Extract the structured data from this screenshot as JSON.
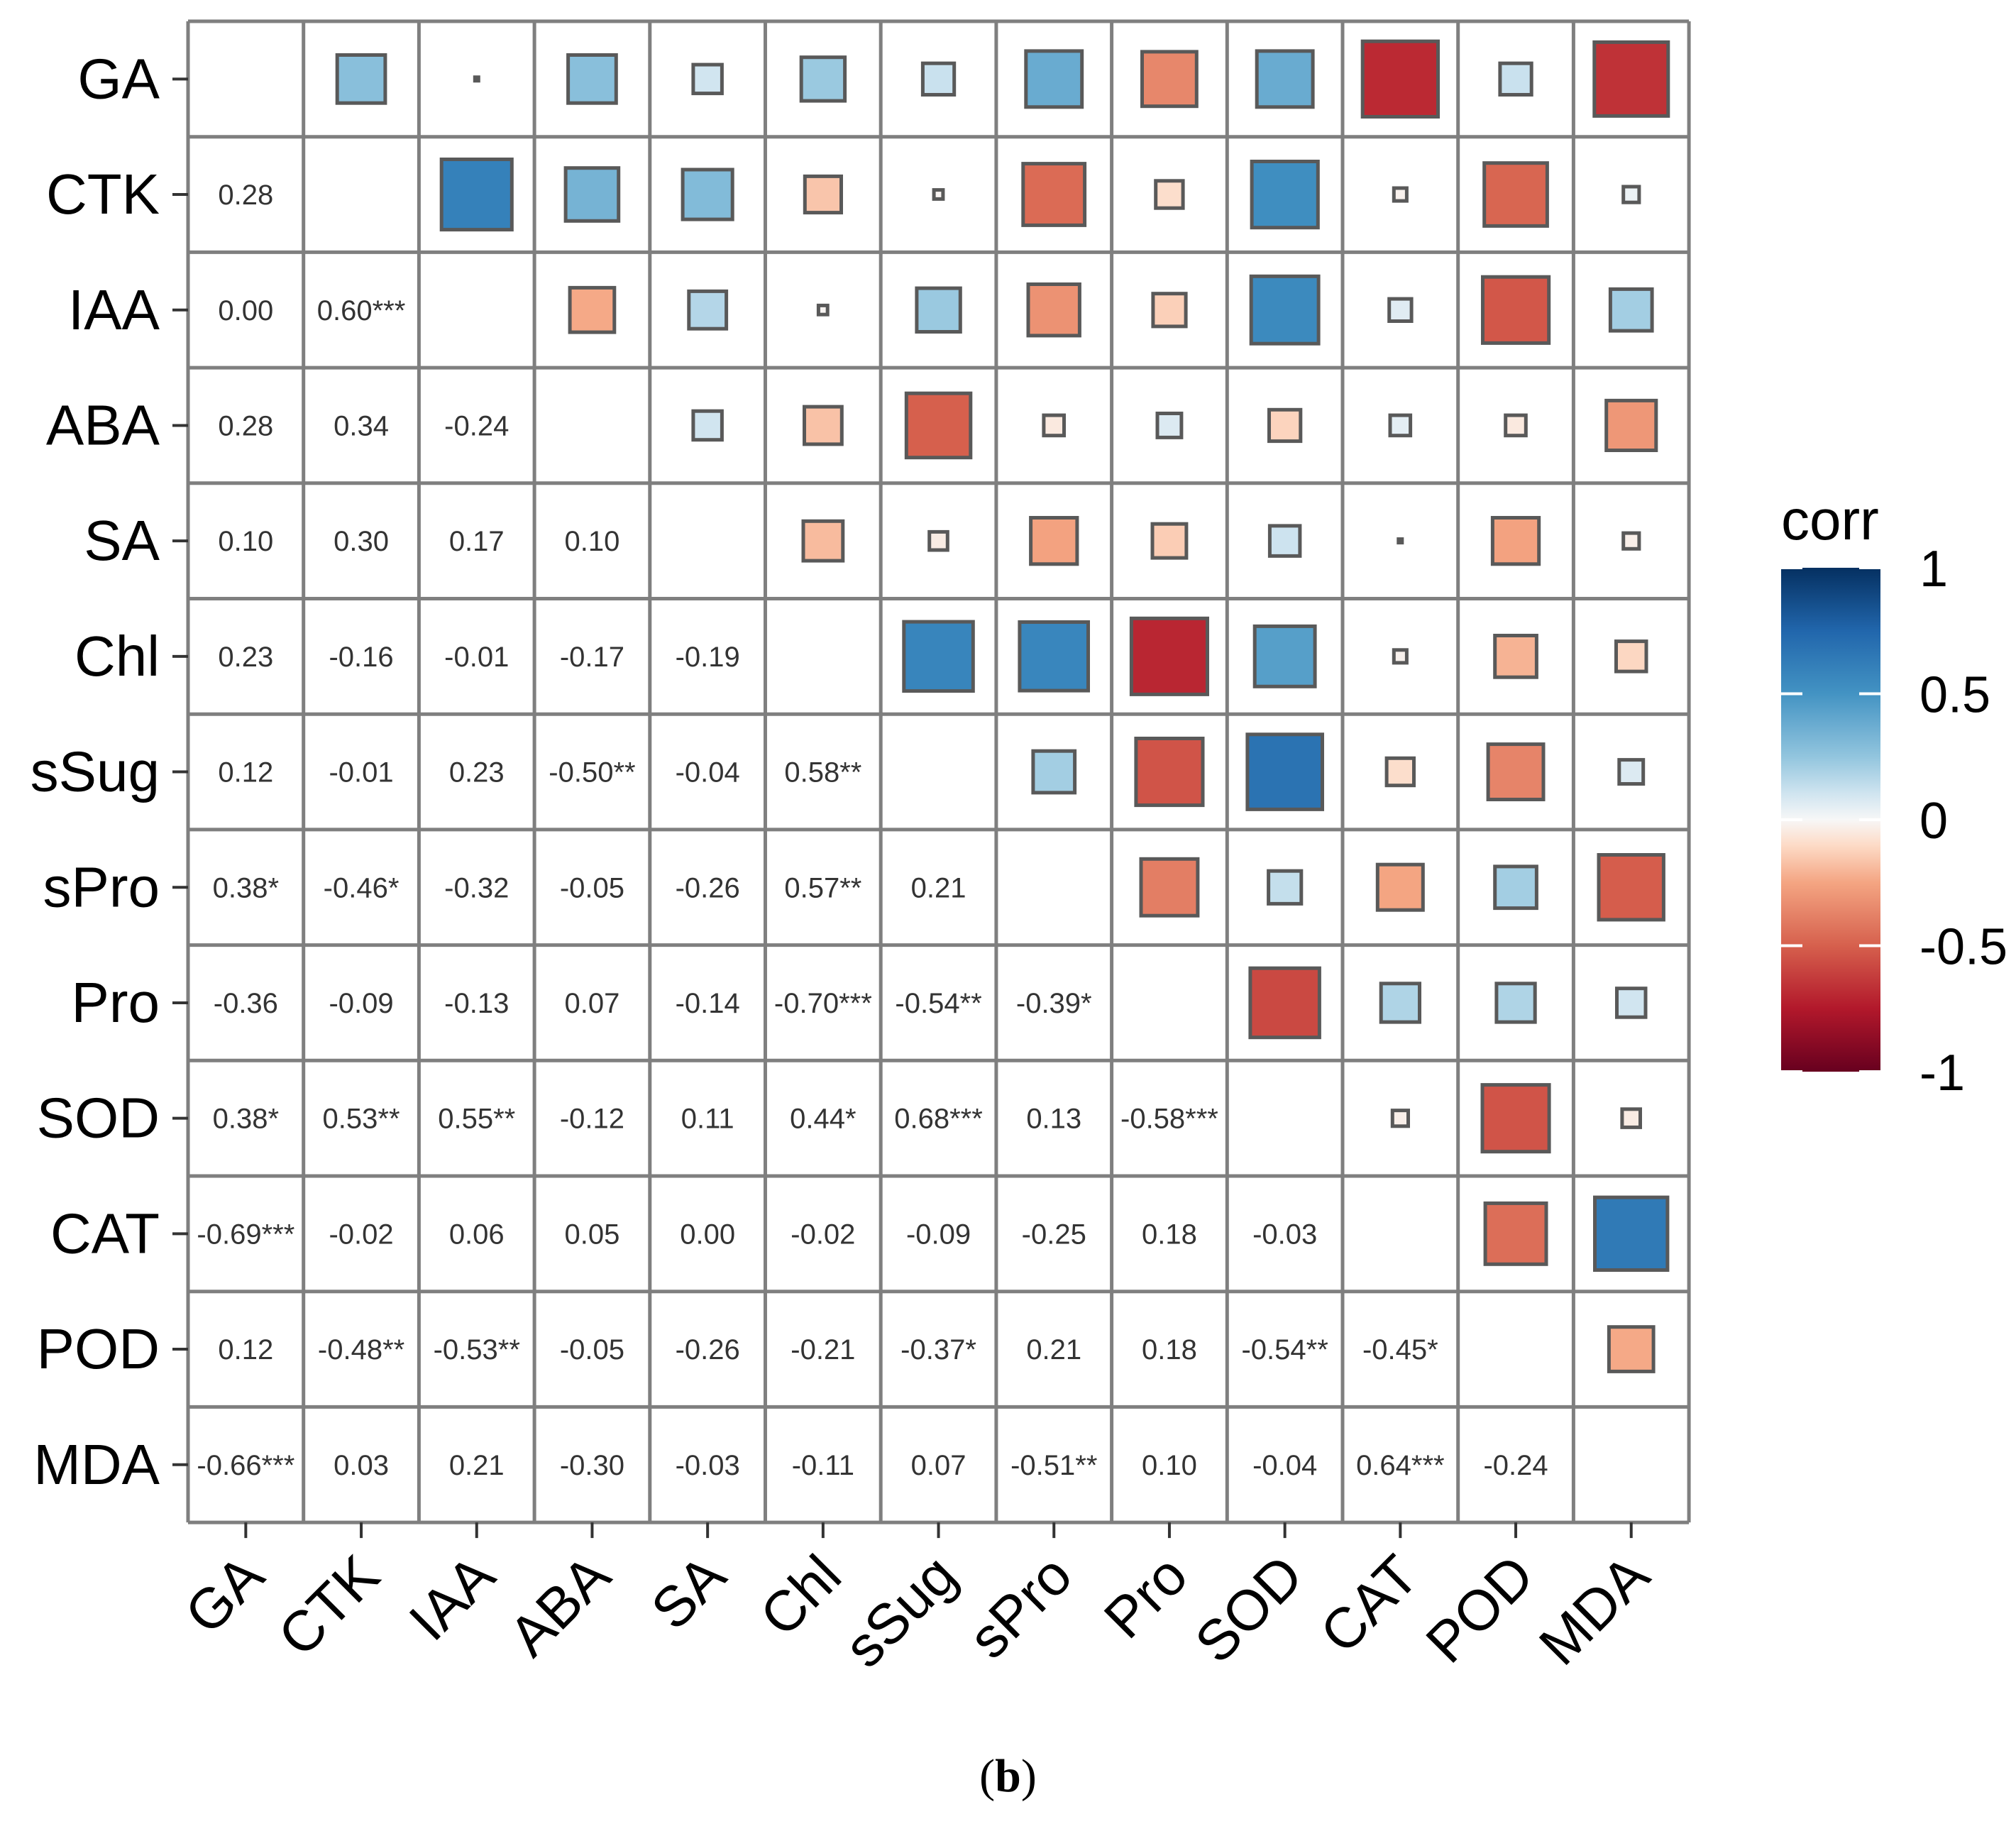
{
  "chart_data": {
    "type": "heatmap",
    "subtype": "correlation-matrix-squares",
    "variables": [
      "GA",
      "CTK",
      "IAA",
      "ABA",
      "SA",
      "Chl",
      "sSug",
      "sPro",
      "Pro",
      "SOD",
      "CAT",
      "POD",
      "MDA"
    ],
    "lower_labels": [
      [],
      [
        "0.28"
      ],
      [
        "0.00",
        "0.60***"
      ],
      [
        "0.28",
        "0.34",
        "-0.24"
      ],
      [
        "0.10",
        "0.30",
        "0.17",
        "0.10"
      ],
      [
        "0.23",
        "-0.16",
        "-0.01",
        "-0.17",
        "-0.19"
      ],
      [
        "0.12",
        "-0.01",
        "0.23",
        "-0.50**",
        "-0.04",
        "0.58**"
      ],
      [
        "0.38*",
        "-0.46*",
        "-0.32",
        "-0.05",
        "-0.26",
        "0.57**",
        "0.21"
      ],
      [
        "-0.36",
        "-0.09",
        "-0.13",
        "0.07",
        "-0.14",
        "-0.70***",
        "-0.54**",
        "-0.39*"
      ],
      [
        "0.38*",
        "0.53**",
        "0.55**",
        "-0.12",
        "0.11",
        "0.44*",
        "0.68***",
        "0.13",
        "-0.58***"
      ],
      [
        "-0.69***",
        "-0.02",
        "0.06",
        "0.05",
        "0.00",
        "-0.02",
        "-0.09",
        "-0.25",
        "0.18",
        "-0.03"
      ],
      [
        "0.12",
        "-0.48**",
        "-0.53**",
        "-0.05",
        "-0.26",
        "-0.21",
        "-0.37*",
        "0.21",
        "0.18",
        "-0.54**",
        "-0.45*"
      ],
      [
        "-0.66***",
        "0.03",
        "0.21",
        "-0.30",
        "-0.03",
        "-0.11",
        "0.07",
        "-0.51**",
        "0.10",
        "-0.04",
        "0.64***",
        "-0.24"
      ]
    ],
    "upper_values": [
      [
        null,
        0.28,
        0.0,
        0.28,
        0.1,
        0.23,
        0.12,
        0.38,
        -0.36,
        0.38,
        -0.69,
        0.12,
        -0.66
      ],
      [
        null,
        null,
        0.6,
        0.34,
        0.3,
        -0.16,
        -0.01,
        -0.46,
        -0.09,
        0.53,
        -0.02,
        -0.48,
        0.03
      ],
      [
        null,
        null,
        null,
        -0.24,
        0.17,
        -0.01,
        0.23,
        -0.32,
        -0.13,
        0.55,
        0.06,
        -0.53,
        0.21
      ],
      [
        null,
        null,
        null,
        null,
        0.1,
        -0.17,
        -0.5,
        -0.05,
        0.07,
        -0.12,
        0.05,
        -0.05,
        -0.3
      ],
      [
        null,
        null,
        null,
        null,
        null,
        -0.19,
        -0.04,
        -0.26,
        -0.14,
        0.11,
        0.0,
        -0.26,
        -0.03
      ],
      [
        null,
        null,
        null,
        null,
        null,
        null,
        0.58,
        0.57,
        -0.7,
        0.44,
        -0.02,
        -0.21,
        -0.11
      ],
      [
        null,
        null,
        null,
        null,
        null,
        null,
        null,
        0.21,
        -0.54,
        0.68,
        -0.09,
        -0.37,
        0.07
      ],
      [
        null,
        null,
        null,
        null,
        null,
        null,
        null,
        null,
        -0.39,
        0.13,
        -0.25,
        0.21,
        -0.51
      ],
      [
        null,
        null,
        null,
        null,
        null,
        null,
        null,
        null,
        null,
        -0.58,
        0.18,
        0.18,
        0.1
      ],
      [
        null,
        null,
        null,
        null,
        null,
        null,
        null,
        null,
        null,
        null,
        -0.03,
        -0.54,
        -0.04
      ],
      [
        null,
        null,
        null,
        null,
        null,
        null,
        null,
        null,
        null,
        null,
        null,
        -0.45,
        0.64
      ],
      [
        null,
        null,
        null,
        null,
        null,
        null,
        null,
        null,
        null,
        null,
        null,
        null,
        -0.24
      ],
      [
        null,
        null,
        null,
        null,
        null,
        null,
        null,
        null,
        null,
        null,
        null,
        null,
        null
      ]
    ],
    "legend": {
      "title": "corr",
      "ticks": [
        {
          "value": 1,
          "label": "1"
        },
        {
          "value": 0.5,
          "label": "0.5"
        },
        {
          "value": 0,
          "label": "0"
        },
        {
          "value": -0.5,
          "label": "-0.5"
        },
        {
          "value": -1,
          "label": "-1"
        }
      ],
      "range": [
        -1,
        1
      ],
      "placement": "right"
    },
    "colors": {
      "scale": [
        [
          -1.0,
          "#67001f"
        ],
        [
          -0.75,
          "#b2182b"
        ],
        [
          -0.5,
          "#d6604d"
        ],
        [
          -0.25,
          "#f4a582"
        ],
        [
          -0.1,
          "#fddbc7"
        ],
        [
          0.0,
          "#f7f7f7"
        ],
        [
          0.1,
          "#d1e5f0"
        ],
        [
          0.25,
          "#92c5de"
        ],
        [
          0.5,
          "#4393c3"
        ],
        [
          0.75,
          "#2166ac"
        ],
        [
          1.0,
          "#053061"
        ]
      ],
      "grid": "#7f7f7f",
      "square_border": "#595959",
      "label": "#000000",
      "cell_text": "#333333"
    }
  },
  "caption": {
    "open": "(",
    "letter": "b",
    "close": ")"
  }
}
